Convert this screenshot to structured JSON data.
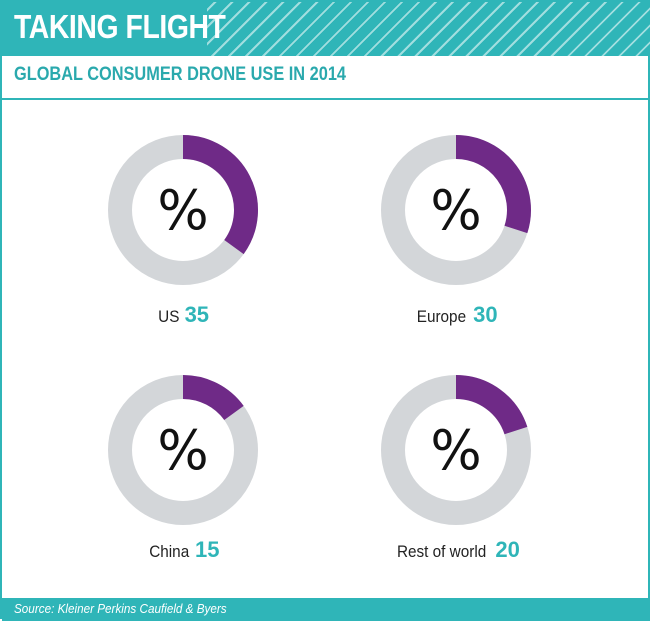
{
  "header": {
    "title": "TAKING FLIGHT"
  },
  "subtitle": "GLOBAL CONSUMER DRONE USE IN 2014",
  "colors": {
    "accent": "#2fb5b8",
    "highlight": "#6f2a87",
    "remainder": "#d3d6d9"
  },
  "chart_data": {
    "type": "pie",
    "title": "TAKING FLIGHT",
    "subtitle": "GLOBAL CONSUMER DRONE USE IN 2014",
    "unit_symbol": "%",
    "categories": [
      "US",
      "Europe",
      "China",
      "Rest of world"
    ],
    "values": [
      35,
      30,
      15,
      20
    ]
  },
  "footer": {
    "source": "Source: Kleiner Perkins Caufield & Byers"
  }
}
